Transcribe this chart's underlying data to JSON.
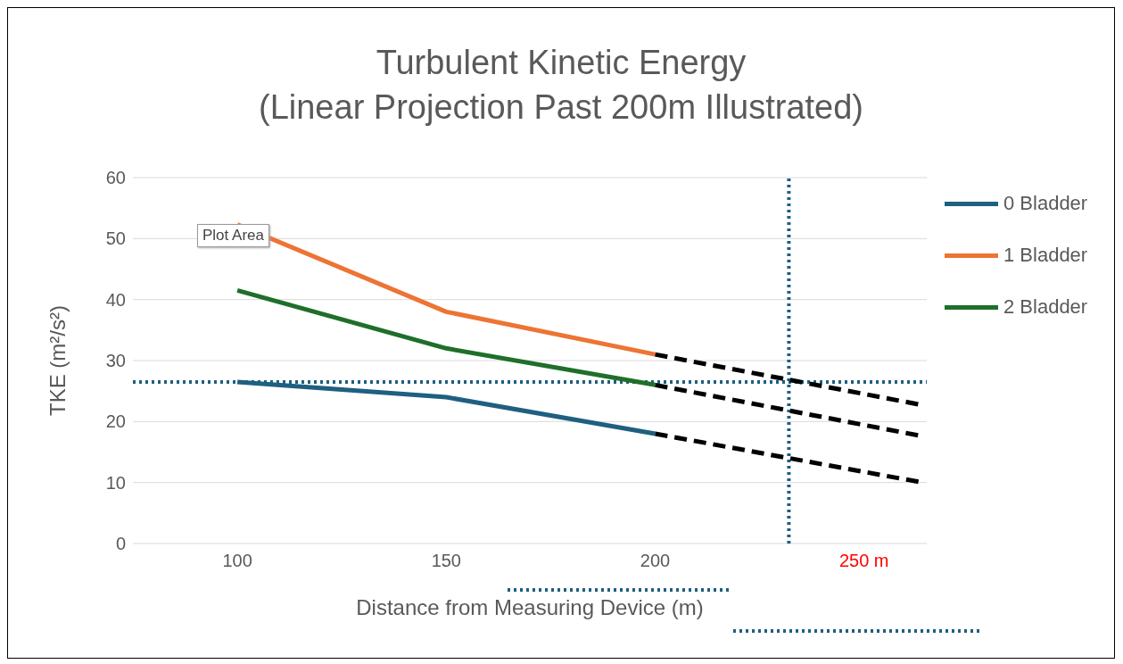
{
  "chart_data": {
    "type": "line",
    "title": "Turbulent Kinetic Energy",
    "subtitle": "(Linear Projection Past 200m Illustrated)",
    "xlabel": "Distance from Measuring Device (m)",
    "ylabel": "TKE (m²/s²)",
    "x": [
      100,
      150,
      200,
      264
    ],
    "series": [
      {
        "name": "0 Bladder",
        "color": "#1f5f80",
        "values": [
          26.5,
          24,
          18,
          null
        ]
      },
      {
        "name": "1 Bladder",
        "color": "#ed7434",
        "values": [
          52.3,
          38,
          31,
          null
        ]
      },
      {
        "name": "2 Bladder",
        "color": "#1f6f2a",
        "values": [
          41.5,
          32,
          26,
          null
        ]
      },
      {
        "color": "#000000",
        "values": [
          null,
          null,
          31,
          22.7
        ],
        "line_style": "dashed"
      },
      {
        "color": "#000000",
        "values": [
          null,
          null,
          26,
          17.6
        ],
        "line_style": "dashed"
      },
      {
        "color": "#000000",
        "values": [
          null,
          null,
          18,
          10
        ],
        "line_style": "dashed"
      }
    ],
    "xlim": [
      75,
      265
    ],
    "xticks": [
      100,
      150,
      200,
      {
        "value": 250,
        "label": "250 m"
      }
    ],
    "ylim": [
      0,
      60
    ],
    "yticks": [
      0,
      10,
      20,
      30,
      40,
      50,
      60
    ],
    "grid": "y",
    "legend": "right",
    "ref_lines": [
      {
        "axis": "y",
        "value": 26.5,
        "color": "#1f5f80",
        "line_style": "dotted"
      },
      {
        "axis": "x",
        "value": 232,
        "color": "#1f5f80",
        "line_style": "dotted"
      }
    ],
    "annotations": [
      "Plot Area"
    ]
  }
}
